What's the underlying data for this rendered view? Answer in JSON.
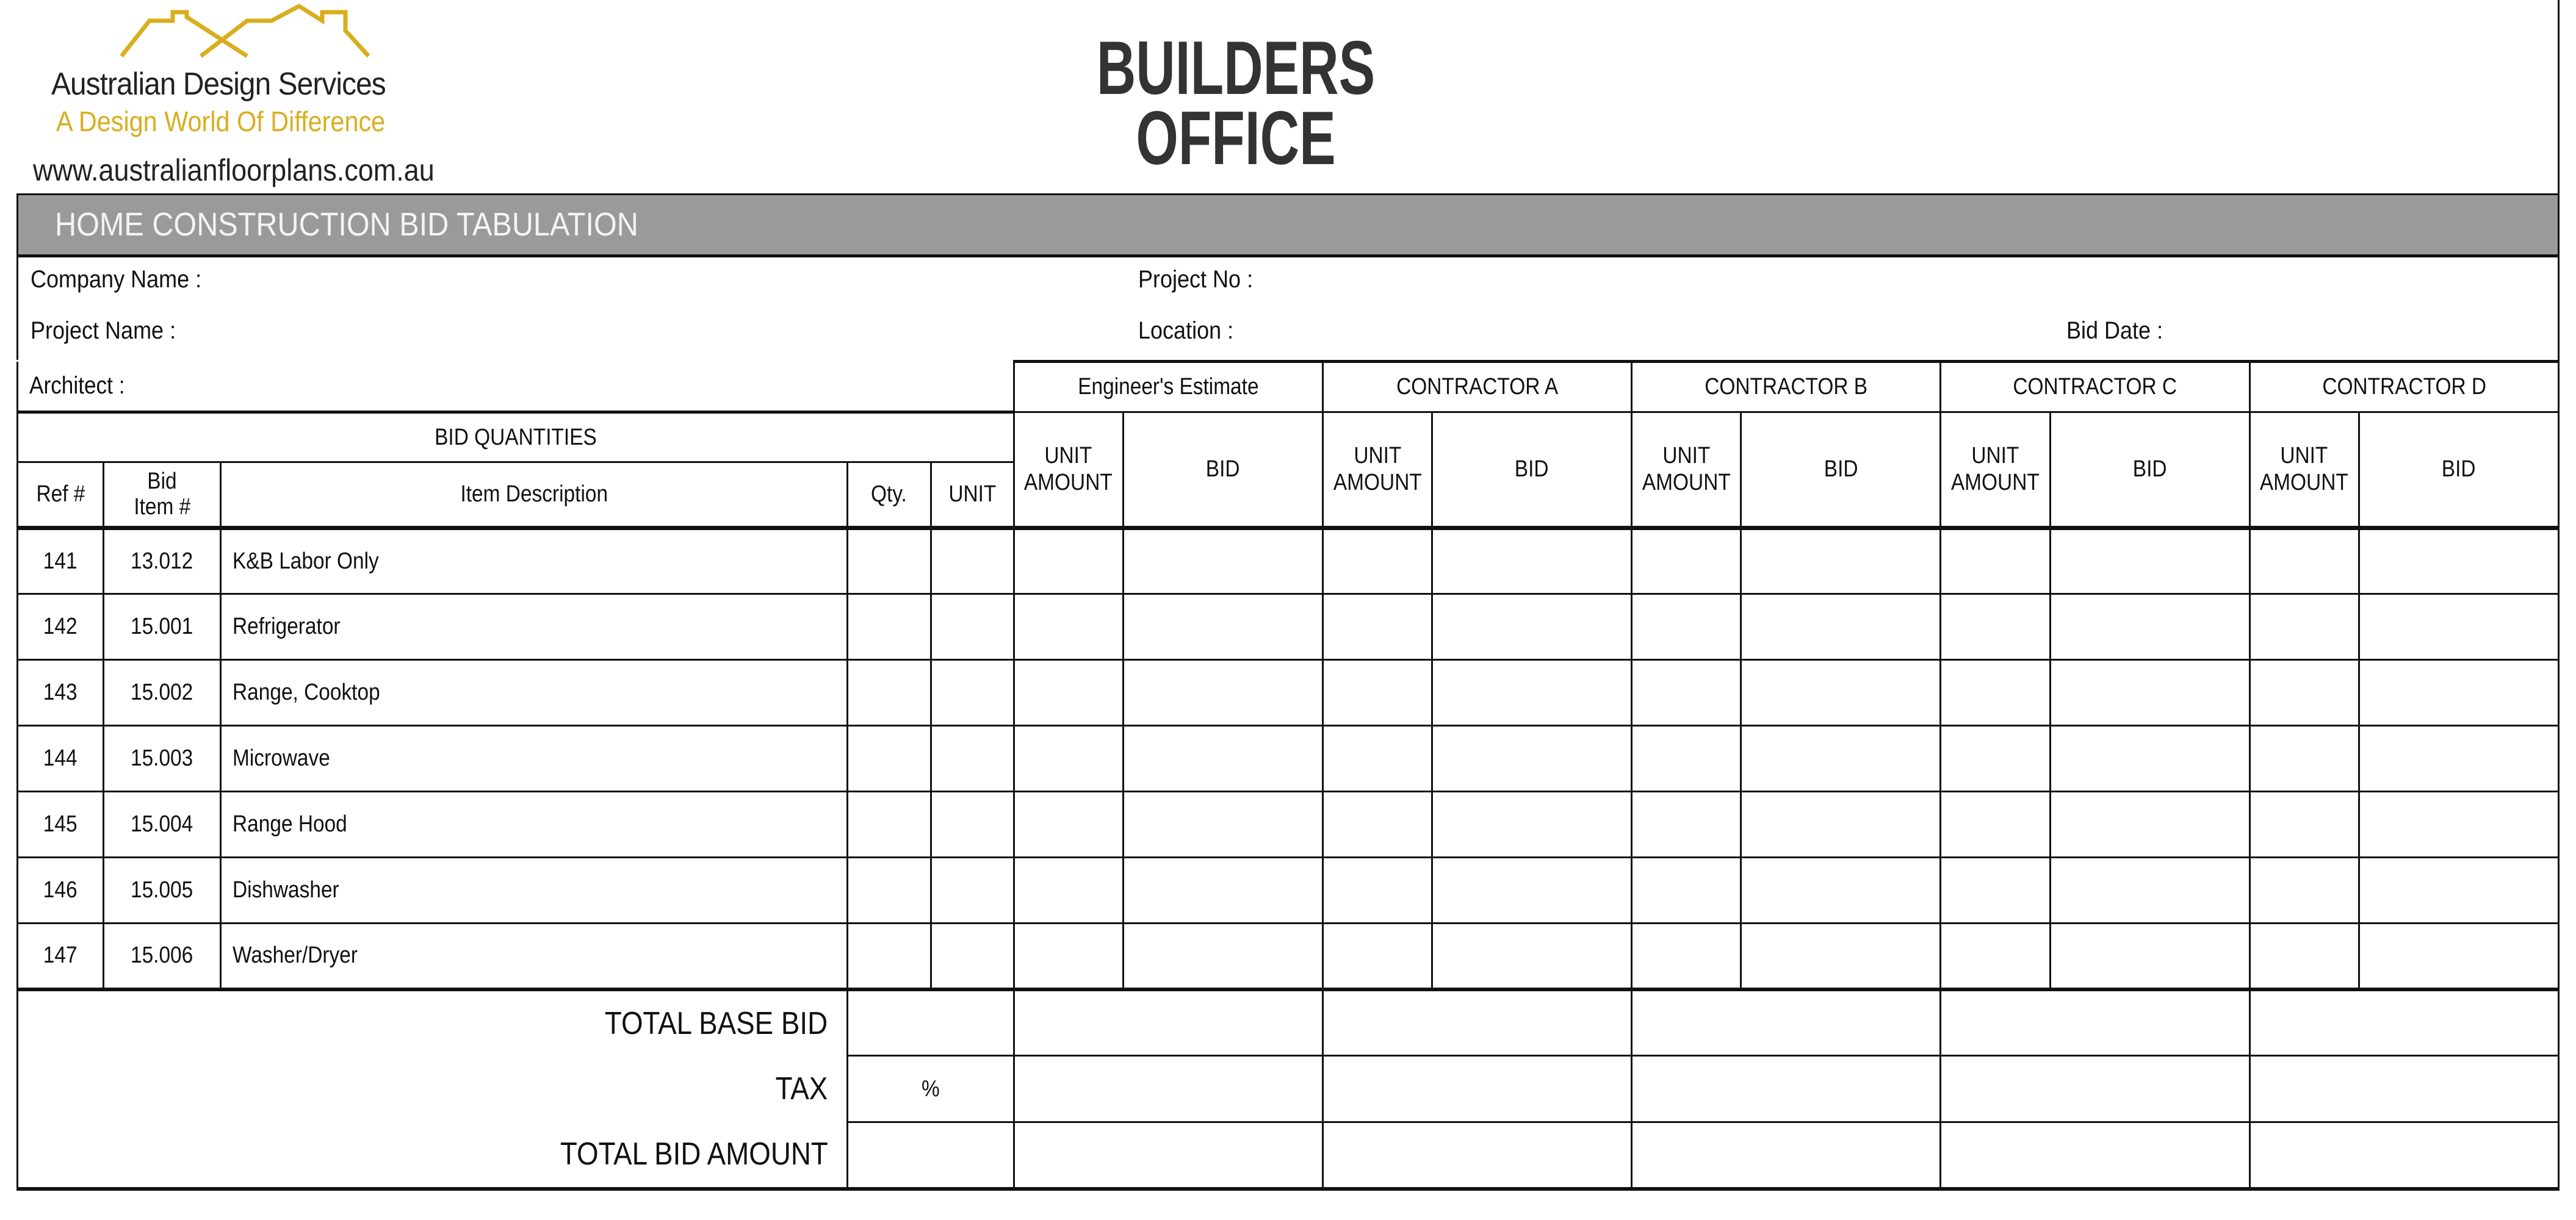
{
  "logo": {
    "company": "Australian Design Services",
    "tagline": "A Design World Of Difference",
    "website": "www.australianfloorplans.com.au",
    "brand_color": "#d9ae1e"
  },
  "header": {
    "title_line1": "BUILDERS",
    "title_line2": "OFFICE"
  },
  "form": {
    "title": "HOME CONSTRUCTION  BID TABULATION",
    "title_bar_color": "#9a9a9a",
    "company_name_label": "Company Name :",
    "project_no_label": "Project No :",
    "project_name_label": "Project Name :",
    "location_label": "Location :",
    "bid_date_label": "Bid Date :",
    "architect_label": "Architect :"
  },
  "table": {
    "bid_quantities_label": "BID QUANTITIES",
    "columns": {
      "ref": "Ref #",
      "bid_item_1": "Bid",
      "bid_item_2": "Item #",
      "description": "Item Description",
      "qty": "Qty.",
      "unit": "UNIT"
    },
    "groups": [
      "Engineer's Estimate",
      "CONTRACTOR A",
      "CONTRACTOR B",
      "CONTRACTOR C",
      "CONTRACTOR D"
    ],
    "sub_columns": {
      "unit_amount_1": "UNIT",
      "unit_amount_2": "AMOUNT",
      "bid": "BID"
    },
    "rows": [
      {
        "ref": "141",
        "item": "13.012",
        "description": "K&B Labor Only"
      },
      {
        "ref": "142",
        "item": "15.001",
        "description": "Refrigerator"
      },
      {
        "ref": "143",
        "item": "15.002",
        "description": "Range, Cooktop"
      },
      {
        "ref": "144",
        "item": "15.003",
        "description": "Microwave"
      },
      {
        "ref": "145",
        "item": "15.004",
        "description": "Range Hood"
      },
      {
        "ref": "146",
        "item": "15.005",
        "description": "Dishwasher"
      },
      {
        "ref": "147",
        "item": "15.006",
        "description": "Washer/Dryer"
      }
    ],
    "totals": {
      "base_bid": "TOTAL BASE BID",
      "tax": "TAX",
      "tax_unit": "%",
      "total_bid": "TOTAL BID AMOUNT"
    }
  }
}
